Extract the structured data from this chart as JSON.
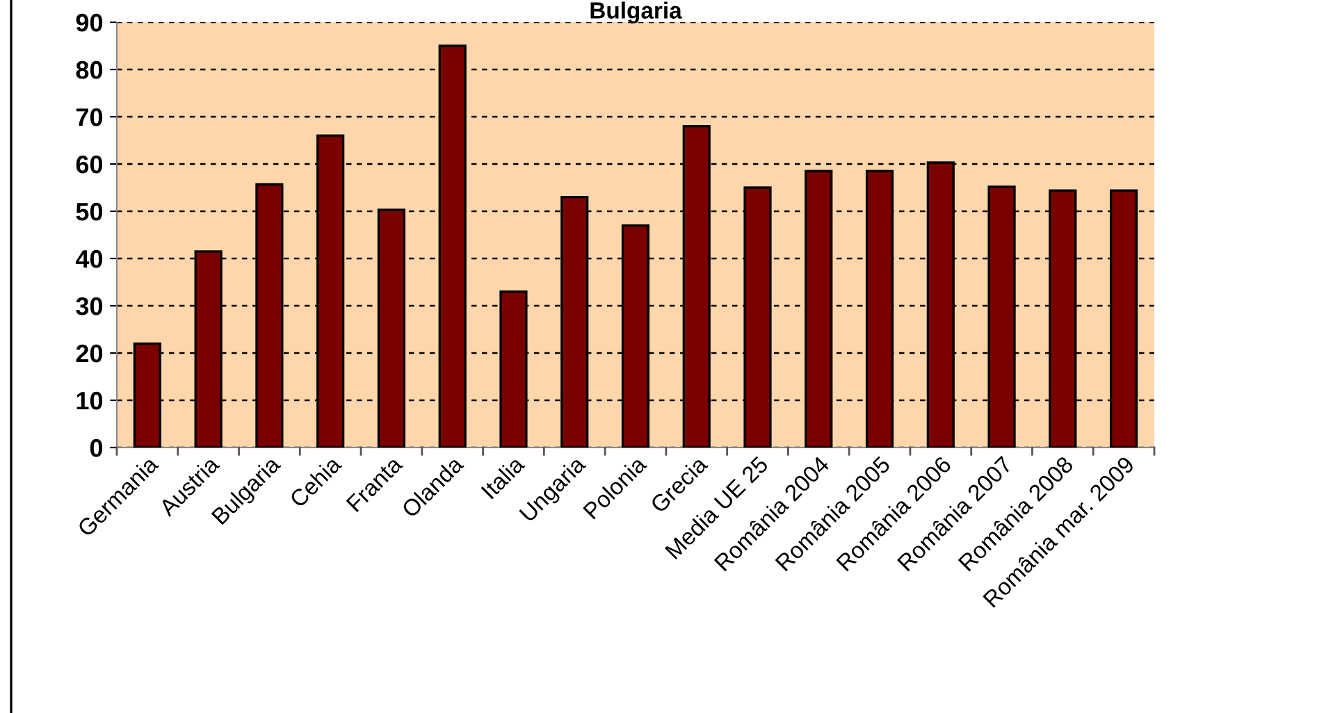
{
  "chart_data": {
    "type": "bar",
    "title": "Bulgaria",
    "categories": [
      "Germania",
      "Austria",
      "Bulgaria",
      "Cehia",
      "Franta",
      "Olanda",
      "Italia",
      "Ungaria",
      "Polonia",
      "Grecia",
      "Media UE 25",
      "România 2004",
      "România 2005",
      "România 2006",
      "România 2007",
      "România 2008",
      "România mar. 2009"
    ],
    "values": [
      22,
      41.5,
      55.7,
      66,
      50.3,
      85,
      33,
      53,
      47,
      68,
      55,
      58.5,
      58.5,
      60.3,
      55.2,
      54.4,
      54.4
    ],
    "color": "#7a0000",
    "ylim": [
      0,
      90
    ],
    "yticks": [
      0,
      10,
      20,
      30,
      40,
      50,
      60,
      70,
      80,
      90
    ],
    "grid": "y"
  }
}
